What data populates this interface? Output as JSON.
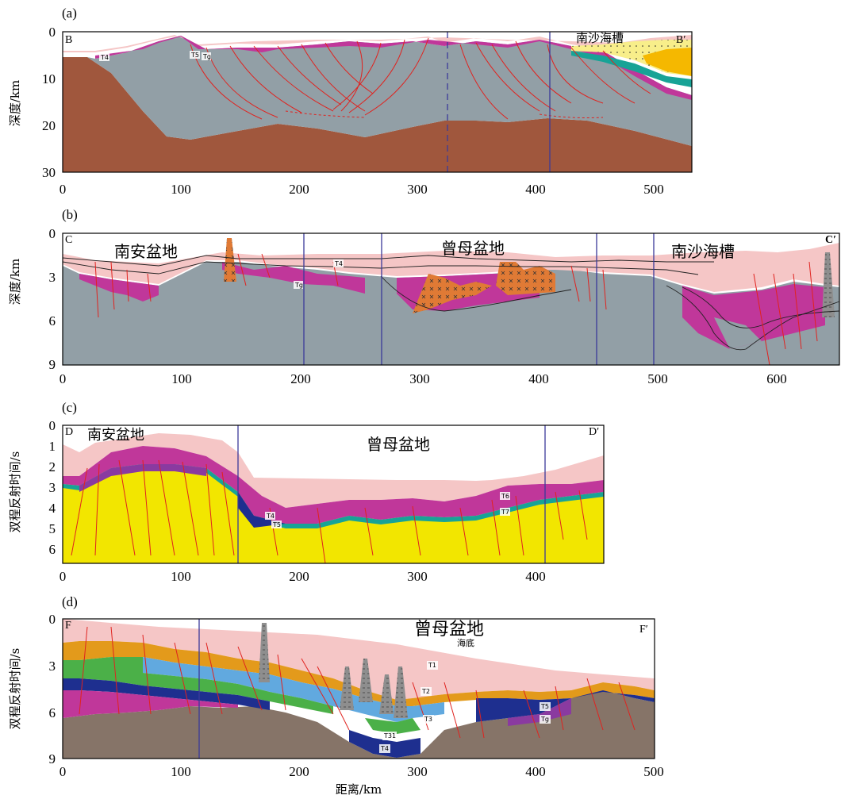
{
  "colors": {
    "pink": "#f5c6c6",
    "magenta": "#c0379a",
    "purple": "#8a3aa0",
    "gray_basement": "#929fa6",
    "brown_mantle": "#a0573d",
    "yellow": "#f2e600",
    "teal": "#18a396",
    "orange": "#e39a1b",
    "light_blue": "#61a9df",
    "green": "#4bb048",
    "navy": "#1e2f8f",
    "dark_gray_brown": "#867468",
    "volcanic_orange": "#e07a35",
    "fault_red": "#e0231f"
  },
  "panels": [
    {
      "label": "(a)",
      "ylabel": "深度/km",
      "left_end": "B",
      "right_end": "B′",
      "region_labels": [
        "南沙海槽"
      ],
      "horizon_labels": [
        "T4",
        "T5",
        "Tg"
      ],
      "x_ticks": [
        "0",
        "100",
        "200",
        "300",
        "400",
        "500"
      ],
      "y_ticks": [
        "0",
        "10",
        "20",
        "30"
      ]
    },
    {
      "label": "(b)",
      "ylabel": "深度/km",
      "left_end": "C",
      "right_end": "C′",
      "region_labels": [
        "南安盆地",
        "曾母盆地",
        "南沙海槽"
      ],
      "horizon_labels": [
        "T4",
        "Tg"
      ],
      "x_ticks": [
        "0",
        "100",
        "200",
        "300",
        "400",
        "500",
        "600"
      ],
      "y_ticks": [
        "0",
        "3",
        "6",
        "9"
      ]
    },
    {
      "label": "(c)",
      "ylabel": "双程反射时间/s",
      "left_end": "D",
      "right_end": "D′",
      "region_labels": [
        "南安盆地",
        "曾母盆地"
      ],
      "horizon_labels": [
        "T4",
        "T5",
        "T6",
        "T7"
      ],
      "x_ticks": [
        "0",
        "100",
        "200",
        "300",
        "400"
      ],
      "y_ticks": [
        "0",
        "1",
        "2",
        "3",
        "4",
        "5",
        "6"
      ]
    },
    {
      "label": "(d)",
      "ylabel": "双程反射时间/s",
      "left_end": "F",
      "right_end": "F′",
      "region_labels": [
        "曾母盆地",
        "海底"
      ],
      "horizon_labels": [
        "T1",
        "T2",
        "T3",
        "T31",
        "T4",
        "T5",
        "Tg"
      ],
      "x_ticks": [
        "0",
        "100",
        "200",
        "300",
        "400",
        "500"
      ],
      "y_ticks": [
        "0",
        "3",
        "6",
        "9"
      ]
    }
  ],
  "xlabel": "距离/km"
}
